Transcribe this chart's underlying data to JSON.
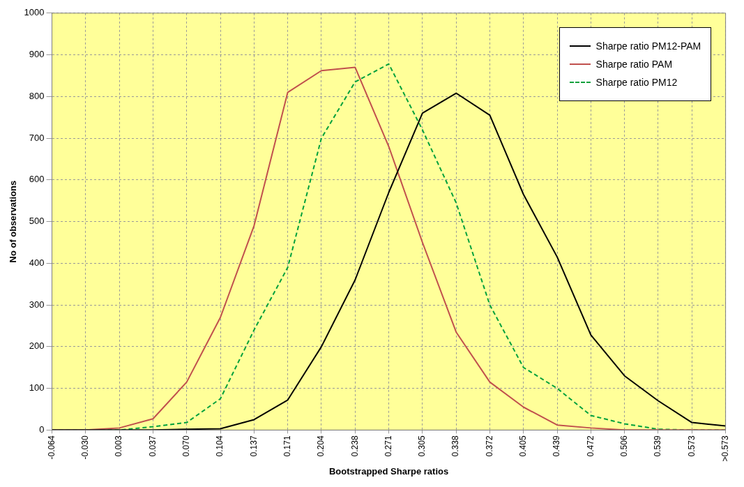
{
  "chart_data": {
    "type": "line",
    "xlabel": "Bootstrapped Sharpe ratios",
    "ylabel": "No of observations",
    "categories": [
      "-0.064",
      "-0.030",
      "0.003",
      "0.037",
      "0.070",
      "0.104",
      "0.137",
      "0.171",
      "0.204",
      "0.238",
      "0.271",
      "0.305",
      "0.338",
      "0.372",
      "0.405",
      "0.439",
      "0.472",
      "0.506",
      "0.539",
      "0.573",
      ">0.573"
    ],
    "series": [
      {
        "name": "Sharpe ratio PM12-PAM",
        "color": "#000000",
        "line_style": "solid",
        "values": [
          0,
          0,
          0,
          0,
          2,
          3,
          25,
          72,
          200,
          360,
          570,
          760,
          808,
          755,
          565,
          415,
          228,
          130,
          70,
          18,
          10
        ]
      },
      {
        "name": "Sharpe ratio PAM",
        "color": "#c0504d",
        "line_style": "solid",
        "values": [
          0,
          0,
          5,
          27,
          115,
          270,
          490,
          810,
          862,
          870,
          680,
          450,
          235,
          115,
          55,
          12,
          5,
          0,
          0,
          0,
          0
        ]
      },
      {
        "name": "Sharpe ratio PM12",
        "color": "#00a03c",
        "line_style": "dashed",
        "values": [
          0,
          0,
          0,
          8,
          18,
          75,
          240,
          390,
          700,
          835,
          878,
          720,
          545,
          300,
          150,
          100,
          35,
          15,
          2,
          0,
          0
        ]
      }
    ],
    "ylim": [
      0,
      1000
    ],
    "yticks": [
      0,
      100,
      200,
      300,
      400,
      500,
      600,
      700,
      800,
      900,
      1000
    ],
    "grid": true,
    "legend": "top right",
    "marker": "none"
  }
}
